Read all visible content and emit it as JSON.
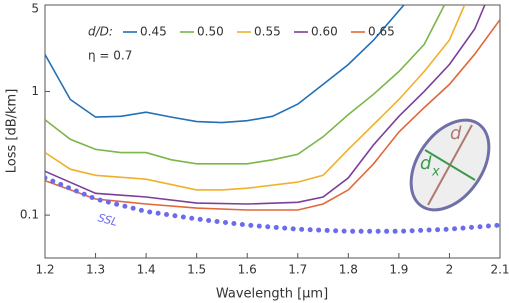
{
  "chart_data": {
    "type": "line",
    "x_label": "Wavelength [μm]",
    "y_label": "Loss [dB/km]",
    "xlim": [
      1.2,
      2.1
    ],
    "xticks": [
      1.2,
      1.3,
      1.4,
      1.5,
      1.6,
      1.7,
      1.8,
      1.9,
      2,
      2.1
    ],
    "ylim": [
      0.045,
      5
    ],
    "yticks": [
      0.1,
      1,
      5
    ],
    "log_y": true,
    "grid": false,
    "legend_title": "d/D:",
    "annotation": "η = 0.7",
    "inset_labels": {
      "major": "d",
      "minor": "d",
      "minor_subscript": "x"
    },
    "series": [
      {
        "name": "0.45",
        "color": "#2270b8",
        "x": [
          1.2,
          1.25,
          1.3,
          1.35,
          1.4,
          1.45,
          1.5,
          1.55,
          1.6,
          1.65,
          1.7,
          1.75,
          1.8,
          1.85,
          1.91
        ],
        "values": [
          1.99,
          0.86,
          0.62,
          0.63,
          0.68,
          0.62,
          0.57,
          0.56,
          0.58,
          0.63,
          0.79,
          1.14,
          1.65,
          2.6,
          5
        ]
      },
      {
        "name": "0.50",
        "color": "#7ab648",
        "x": [
          1.2,
          1.25,
          1.3,
          1.35,
          1.4,
          1.45,
          1.5,
          1.55,
          1.6,
          1.65,
          1.7,
          1.75,
          1.8,
          1.85,
          1.9,
          1.95,
          1.99
        ],
        "values": [
          0.59,
          0.41,
          0.34,
          0.32,
          0.32,
          0.28,
          0.26,
          0.26,
          0.26,
          0.28,
          0.31,
          0.43,
          0.65,
          0.95,
          1.45,
          2.4,
          5
        ]
      },
      {
        "name": "0.55",
        "color": "#f0b02a",
        "x": [
          1.2,
          1.25,
          1.3,
          1.4,
          1.5,
          1.55,
          1.6,
          1.7,
          1.75,
          1.8,
          1.85,
          1.9,
          1.95,
          2.0,
          2.03
        ],
        "values": [
          0.32,
          0.235,
          0.21,
          0.195,
          0.16,
          0.16,
          0.165,
          0.185,
          0.21,
          0.34,
          0.54,
          0.86,
          1.45,
          2.6,
          5
        ]
      },
      {
        "name": "0.60",
        "color": "#7b3f98",
        "x": [
          1.2,
          1.3,
          1.4,
          1.5,
          1.6,
          1.7,
          1.75,
          1.8,
          1.85,
          1.9,
          1.95,
          2.0,
          2.05,
          2.07
        ],
        "values": [
          0.226,
          0.15,
          0.14,
          0.125,
          0.123,
          0.127,
          0.14,
          0.2,
          0.37,
          0.63,
          1,
          1.65,
          3.2,
          5
        ]
      },
      {
        "name": "0.65",
        "color": "#e0683a",
        "x": [
          1.2,
          1.3,
          1.4,
          1.5,
          1.6,
          1.7,
          1.75,
          1.8,
          1.85,
          1.9,
          1.95,
          2.0,
          2.05,
          2.1
        ],
        "values": [
          0.19,
          0.135,
          0.123,
          0.114,
          0.11,
          0.11,
          0.123,
          0.16,
          0.26,
          0.47,
          0.74,
          1.14,
          2,
          3.8
        ]
      }
    ],
    "reference": {
      "name": "SSL",
      "color": "#6b6bee",
      "x": [
        1.2,
        1.3,
        1.4,
        1.5,
        1.6,
        1.7,
        1.8,
        1.9,
        2.0,
        2.1
      ],
      "values": [
        0.2,
        0.135,
        0.107,
        0.093,
        0.083,
        0.077,
        0.074,
        0.074,
        0.077,
        0.083
      ]
    }
  }
}
